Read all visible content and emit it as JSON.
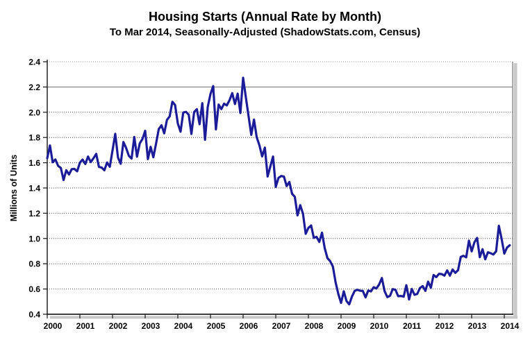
{
  "title": "Housing Starts (Annual Rate by Month)",
  "subtitle": "To Mar 2014, Seasonally-Adjusted (ShadowStats.com, Census)",
  "chart_data": {
    "type": "line",
    "title": "Housing Starts (Annual Rate by Month)",
    "subtitle": "To Mar 2014, Seasonally-Adjusted (ShadowStats.com, Census)",
    "xlabel": "",
    "ylabel": "Millions of Units",
    "ylim": [
      0.4,
      2.4
    ],
    "ytick_step": 0.2,
    "ytick_labels": [
      "0.4",
      "0.6",
      "0.8",
      "1.0",
      "1.2",
      "1.4",
      "1.6",
      "1.8",
      "2.0",
      "2.2",
      "2.4"
    ],
    "xtick_labels": [
      "2000",
      "2001",
      "2002",
      "2003",
      "2004",
      "2005",
      "2006",
      "2007",
      "2008",
      "2009",
      "2010",
      "2011",
      "2012",
      "2013",
      "2014"
    ],
    "x_start": {
      "year": 2000,
      "month": 1
    },
    "x_end": {
      "year": 2014,
      "month": 3
    },
    "grid": "horizontal dotted lines every 0.2; line at 2.2 renders solid gray; top frame dotted",
    "legend": "none",
    "series": [
      {
        "name": "Housing Starts (SAAR, millions of units)",
        "color": "#1c1c99",
        "monthly_values_millions": [
          1.636,
          1.737,
          1.604,
          1.626,
          1.575,
          1.559,
          1.463,
          1.541,
          1.507,
          1.549,
          1.551,
          1.532,
          1.6,
          1.625,
          1.59,
          1.649,
          1.605,
          1.636,
          1.67,
          1.567,
          1.562,
          1.54,
          1.602,
          1.568,
          1.698,
          1.829,
          1.642,
          1.592,
          1.764,
          1.717,
          1.655,
          1.633,
          1.804,
          1.648,
          1.753,
          1.788,
          1.853,
          1.629,
          1.726,
          1.643,
          1.751,
          1.867,
          1.897,
          1.833,
          1.939,
          1.967,
          2.083,
          2.057,
          1.911,
          1.846,
          1.998,
          2.003,
          1.981,
          1.828,
          2.002,
          2.024,
          1.905,
          2.072,
          1.782,
          2.042,
          2.144,
          2.207,
          1.864,
          2.061,
          2.025,
          2.068,
          2.054,
          2.095,
          2.151,
          2.065,
          2.147,
          1.994,
          2.273,
          2.119,
          1.969,
          1.821,
          1.942,
          1.802,
          1.737,
          1.65,
          1.72,
          1.491,
          1.57,
          1.649,
          1.409,
          1.48,
          1.495,
          1.49,
          1.415,
          1.448,
          1.354,
          1.33,
          1.183,
          1.264,
          1.197,
          1.037,
          1.084,
          1.103,
          1.005,
          1.013,
          0.973,
          1.046,
          0.923,
          0.844,
          0.82,
          0.777,
          0.652,
          0.56,
          0.49,
          0.582,
          0.505,
          0.478,
          0.54,
          0.585,
          0.594,
          0.586,
          0.585,
          0.534,
          0.588,
          0.581,
          0.614,
          0.604,
          0.636,
          0.687,
          0.583,
          0.536,
          0.546,
          0.599,
          0.594,
          0.543,
          0.545,
          0.539,
          0.63,
          0.517,
          0.6,
          0.554,
          0.561,
          0.608,
          0.623,
          0.585,
          0.658,
          0.61,
          0.711,
          0.694,
          0.72,
          0.718,
          0.706,
          0.747,
          0.706,
          0.754,
          0.728,
          0.749,
          0.854,
          0.863,
          0.851,
          0.983,
          0.898,
          0.969,
          1.005,
          0.852,
          0.915,
          0.835,
          0.891,
          0.883,
          0.873,
          0.899,
          1.101,
          0.999,
          0.88,
          0.928,
          0.946
        ]
      }
    ]
  },
  "colors": {
    "background": "#ffffff",
    "line": "#1c1c99",
    "gridline_dotted": "#444444",
    "gridline_solid": "#8f8f8f",
    "axis": "#222222",
    "frame_top": "#999999",
    "frame_right": "#777777",
    "shadow": "#c9c9c9",
    "text": "#000000"
  }
}
